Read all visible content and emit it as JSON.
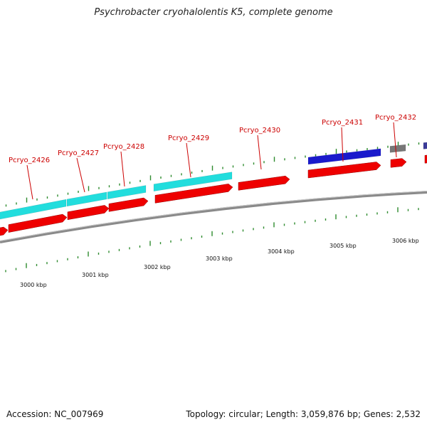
{
  "title": "Psychrobacter cryohalolentis K5, complete genome",
  "footer": {
    "accession_label": "Accession:",
    "accession": "NC_007969",
    "topology_label": "Topology:",
    "topology": "circular",
    "length_label": "Length:",
    "length": "3,059,876 bp",
    "genes_label": "Genes:",
    "genes": "2,532"
  },
  "colors": {
    "tick": "#2e8b2e",
    "label_red": "#cc0000",
    "cds": "#ee0000",
    "gene_cyan": "#22dddd",
    "gene_blue": "#1a1acc",
    "gene_gray": "#777777",
    "backbone": "#888888"
  },
  "scale_labels": [
    "3000 kbp",
    "3001 kbp",
    "3002 kbp",
    "3003 kbp",
    "3004 kbp",
    "3005 kbp",
    "3006 kbp"
  ],
  "gene_labels": [
    "Pcryo_2426",
    "Pcryo_2427",
    "Pcryo_2428",
    "Pcryo_2429",
    "Pcryo_2430",
    "Pcryo_2431",
    "Pcryo_2432"
  ]
}
